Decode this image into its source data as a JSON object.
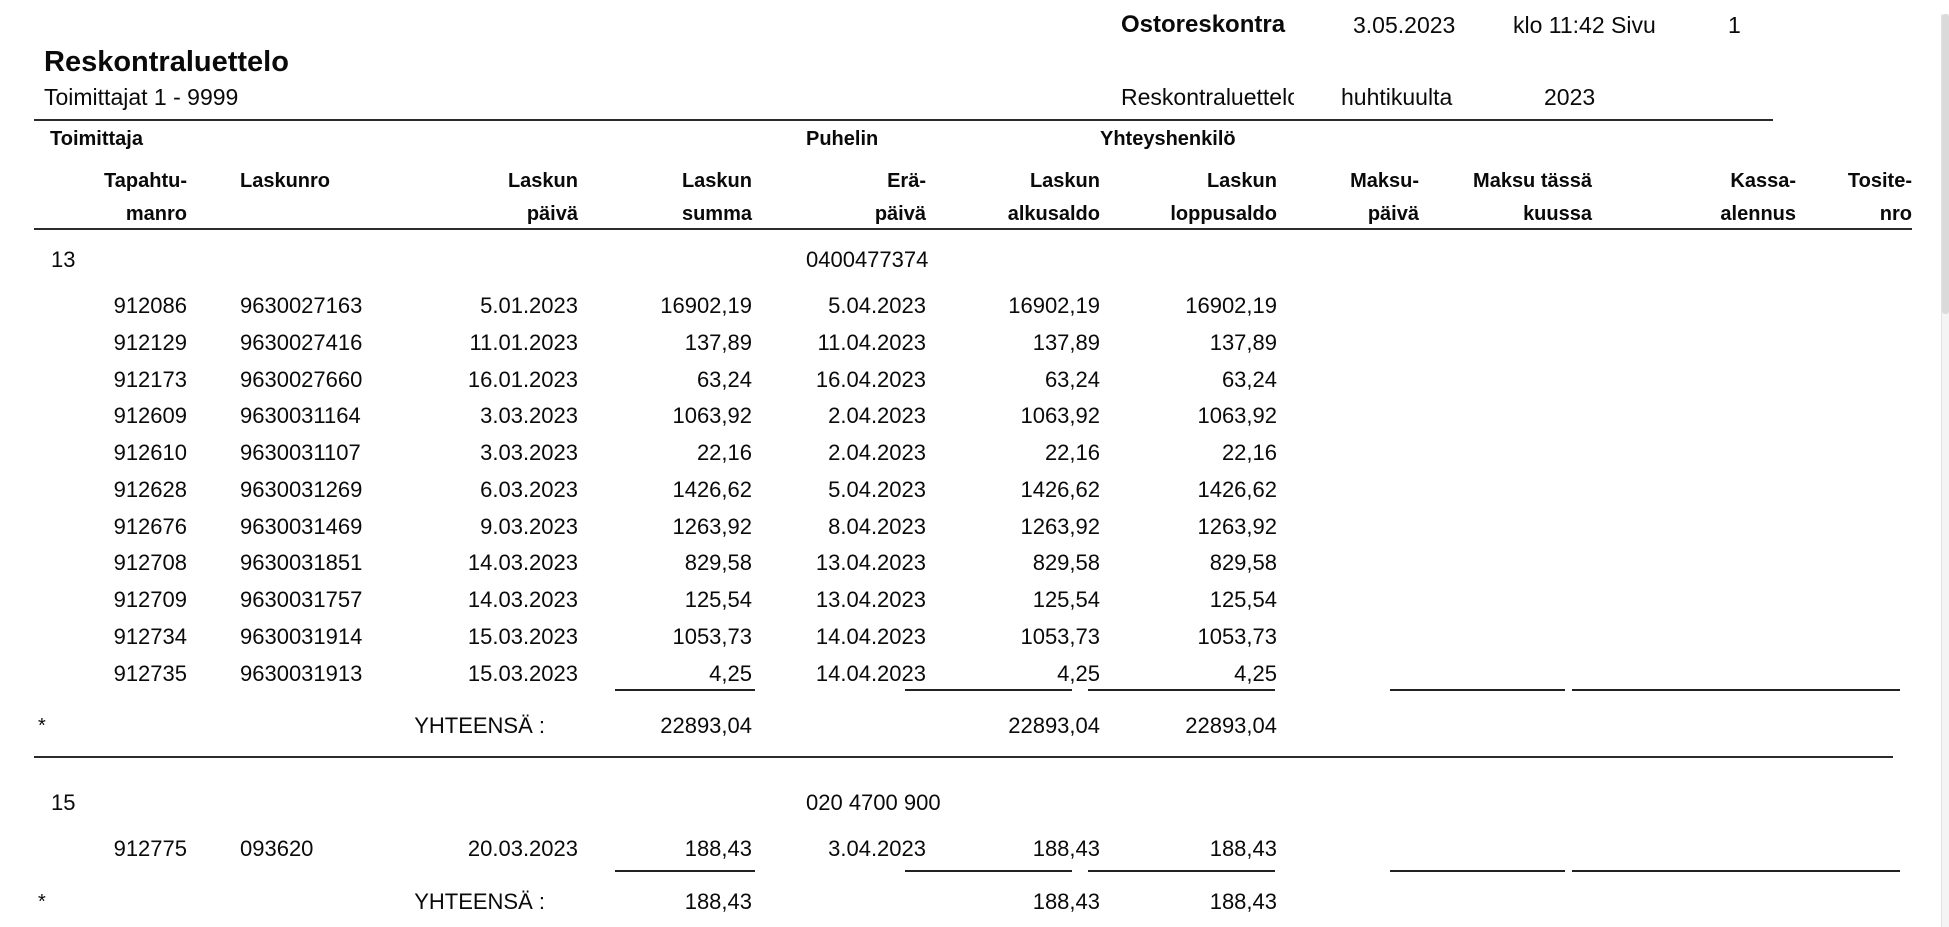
{
  "page_header": {
    "report_type": "Ostoreskontra",
    "print_date": "3.05.2023",
    "time_page_label": "klo 11:42 Sivu",
    "page_number": "1",
    "title": "Reskontraluettelo",
    "subtitle": "Toimittajat 1 - 9999",
    "period_label": "Reskontraluettelo",
    "period_month": "huhtikuulta",
    "period_year": "2023"
  },
  "table": {
    "group_headers": {
      "toimittaja": "Toimittaja",
      "puhelin": "Puhelin",
      "yhteyshenkilo": "Yhteyshenkilö"
    },
    "columns": [
      {
        "line1": "Tapahtu-",
        "line2": "manro"
      },
      {
        "line1": "Laskunro",
        "line2": ""
      },
      {
        "line1": "Laskun",
        "line2": "päivä"
      },
      {
        "line1": "Laskun",
        "line2": "summa"
      },
      {
        "line1": "Erä-",
        "line2": "päivä"
      },
      {
        "line1": "Laskun",
        "line2": "alkusaldo"
      },
      {
        "line1": "Laskun",
        "line2": "loppusaldo"
      },
      {
        "line1": "Maksu-",
        "line2": "päivä"
      },
      {
        "line1": "Maksu tässä",
        "line2": "kuussa"
      },
      {
        "line1": "Kassa-",
        "line2": "alennus"
      },
      {
        "line1": "Tosite-",
        "line2": "nro"
      }
    ],
    "total_label": "YHTEENSÄ :",
    "total_marker": "*",
    "sections": [
      {
        "supplier_number": "13",
        "phone": "0400477374",
        "rows": [
          {
            "tapahtumanro": "912086",
            "laskunro": "9630027163",
            "laskun_paiva": "5.01.2023",
            "summa": "16902,19",
            "erapaiva": "5.04.2023",
            "alkusaldo": "16902,19",
            "loppusaldo": "16902,19"
          },
          {
            "tapahtumanro": "912129",
            "laskunro": "9630027416",
            "laskun_paiva": "11.01.2023",
            "summa": "137,89",
            "erapaiva": "11.04.2023",
            "alkusaldo": "137,89",
            "loppusaldo": "137,89"
          },
          {
            "tapahtumanro": "912173",
            "laskunro": "9630027660",
            "laskun_paiva": "16.01.2023",
            "summa": "63,24",
            "erapaiva": "16.04.2023",
            "alkusaldo": "63,24",
            "loppusaldo": "63,24"
          },
          {
            "tapahtumanro": "912609",
            "laskunro": "9630031164",
            "laskun_paiva": "3.03.2023",
            "summa": "1063,92",
            "erapaiva": "2.04.2023",
            "alkusaldo": "1063,92",
            "loppusaldo": "1063,92"
          },
          {
            "tapahtumanro": "912610",
            "laskunro": "9630031107",
            "laskun_paiva": "3.03.2023",
            "summa": "22,16",
            "erapaiva": "2.04.2023",
            "alkusaldo": "22,16",
            "loppusaldo": "22,16"
          },
          {
            "tapahtumanro": "912628",
            "laskunro": "9630031269",
            "laskun_paiva": "6.03.2023",
            "summa": "1426,62",
            "erapaiva": "5.04.2023",
            "alkusaldo": "1426,62",
            "loppusaldo": "1426,62"
          },
          {
            "tapahtumanro": "912676",
            "laskunro": "9630031469",
            "laskun_paiva": "9.03.2023",
            "summa": "1263,92",
            "erapaiva": "8.04.2023",
            "alkusaldo": "1263,92",
            "loppusaldo": "1263,92"
          },
          {
            "tapahtumanro": "912708",
            "laskunro": "9630031851",
            "laskun_paiva": "14.03.2023",
            "summa": "829,58",
            "erapaiva": "13.04.2023",
            "alkusaldo": "829,58",
            "loppusaldo": "829,58"
          },
          {
            "tapahtumanro": "912709",
            "laskunro": "9630031757",
            "laskun_paiva": "14.03.2023",
            "summa": "125,54",
            "erapaiva": "13.04.2023",
            "alkusaldo": "125,54",
            "loppusaldo": "125,54"
          },
          {
            "tapahtumanro": "912734",
            "laskunro": "9630031914",
            "laskun_paiva": "15.03.2023",
            "summa": "1053,73",
            "erapaiva": "14.04.2023",
            "alkusaldo": "1053,73",
            "loppusaldo": "1053,73"
          },
          {
            "tapahtumanro": "912735",
            "laskunro": "9630031913",
            "laskun_paiva": "15.03.2023",
            "summa": "4,25",
            "erapaiva": "14.04.2023",
            "alkusaldo": "4,25",
            "loppusaldo": "4,25"
          }
        ],
        "totals": {
          "summa": "22893,04",
          "alkusaldo": "22893,04",
          "loppusaldo": "22893,04"
        }
      },
      {
        "supplier_number": "15",
        "phone": "020 4700 900",
        "rows": [
          {
            "tapahtumanro": "912775",
            "laskunro": "093620",
            "laskun_paiva": "20.03.2023",
            "summa": "188,43",
            "erapaiva": "3.04.2023",
            "alkusaldo": "188,43",
            "loppusaldo": "188,43"
          }
        ],
        "totals": {
          "summa": "188,43",
          "alkusaldo": "188,43",
          "loppusaldo": "188,43"
        }
      }
    ]
  },
  "colors": {
    "text": "#0a0a0a",
    "rule": "#2b2b2b",
    "scrollbar_track": "#f4f4f4",
    "scrollbar_thumb": "#dadada"
  }
}
